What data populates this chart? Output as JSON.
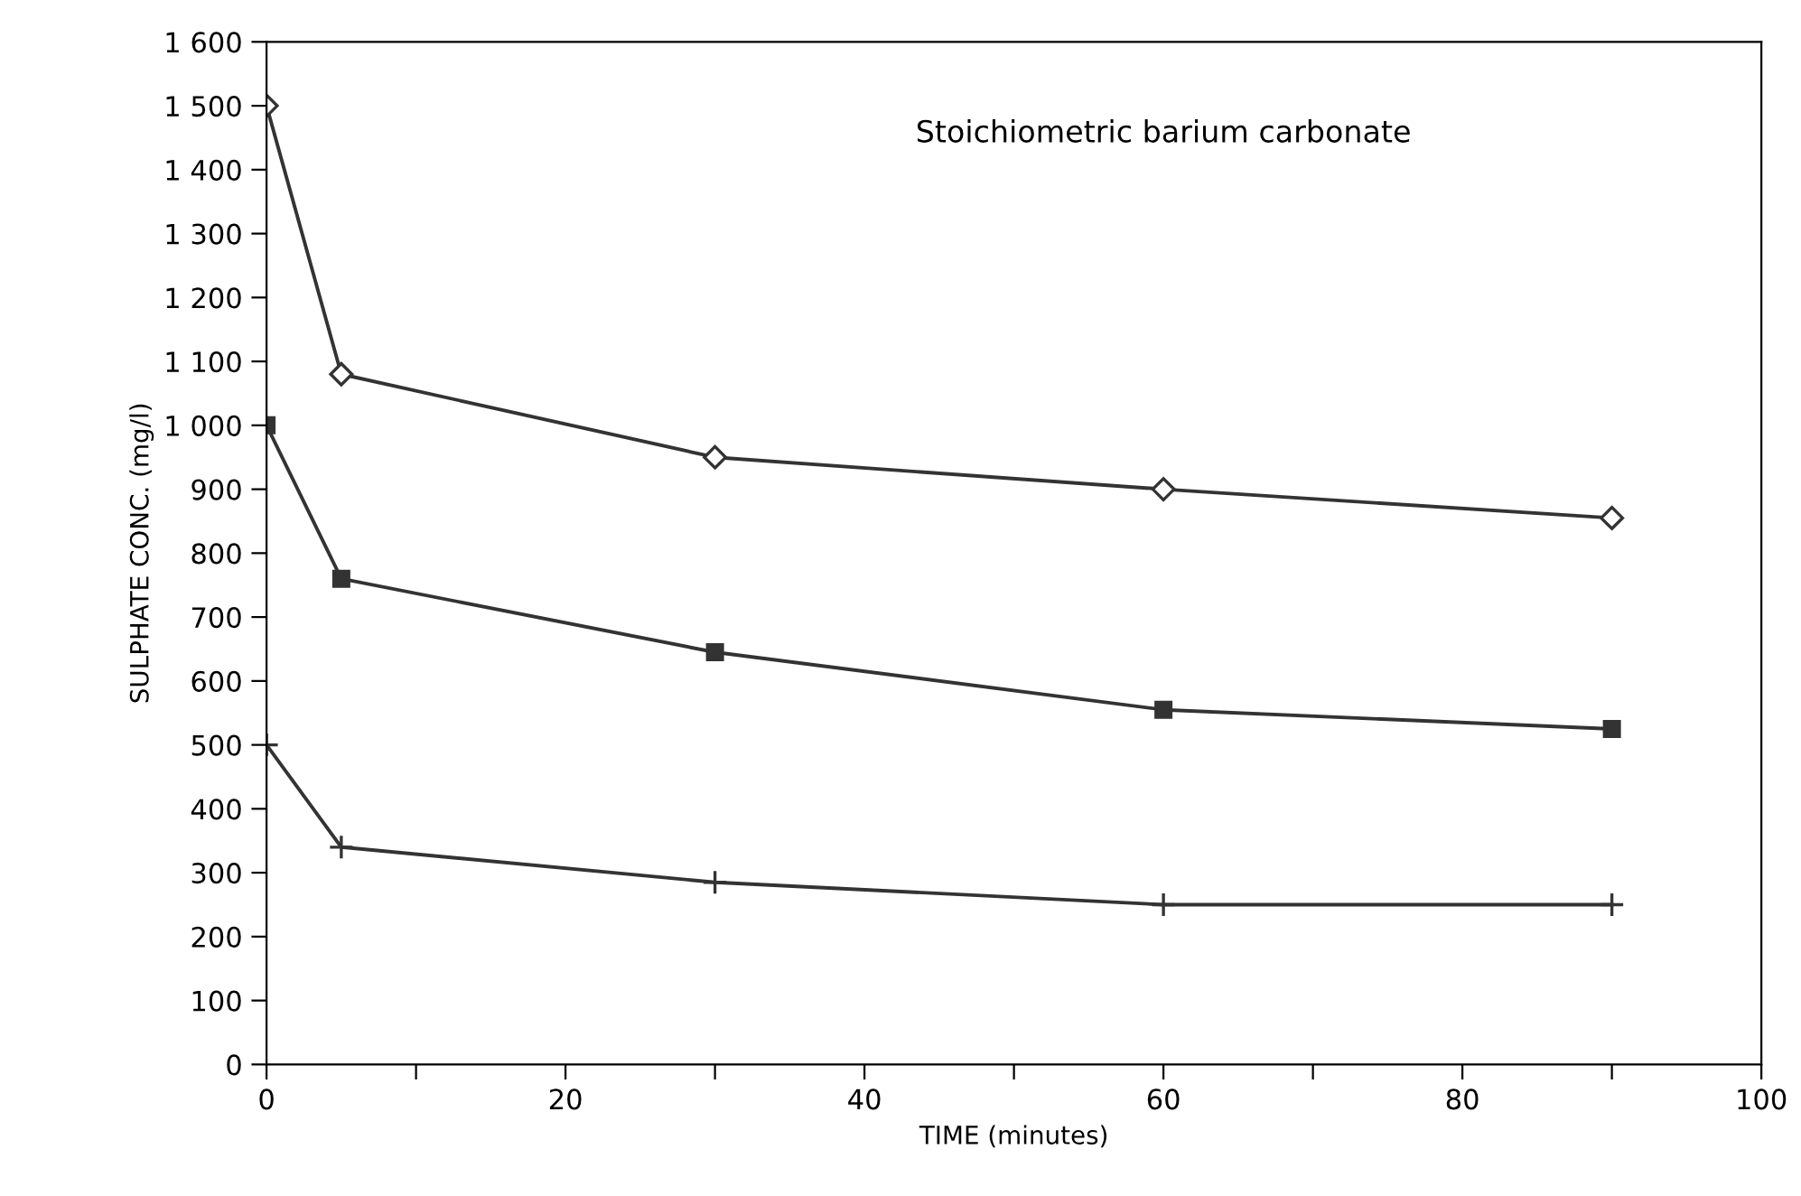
{
  "chart_data": {
    "type": "line",
    "xlabel": "TIME (minutes)",
    "ylabel": "SULPHATE CONC. (mg/l)",
    "annotations": [
      "Stoichiometric barium carbonate"
    ],
    "x": [
      0,
      5,
      30,
      60,
      90
    ],
    "series": [
      {
        "color": "#333333",
        "marker": "diamond",
        "values": [
          1500,
          1080,
          950,
          900,
          855
        ]
      },
      {
        "color": "#333333",
        "marker": "square",
        "values": [
          1000,
          760,
          645,
          555,
          525
        ]
      },
      {
        "color": "#333333",
        "marker": "cross",
        "values": [
          500,
          340,
          285,
          250,
          250
        ]
      }
    ],
    "xlim": [
      0,
      100
    ],
    "xticks": [
      0,
      {
        "value": 10,
        "label": null
      },
      20,
      {
        "value": 30,
        "label": null
      },
      40,
      {
        "value": 50,
        "label": null
      },
      60,
      {
        "value": 70,
        "label": null
      },
      80,
      {
        "value": 90,
        "label": null
      },
      100
    ],
    "ylim": [
      0,
      1600
    ],
    "yticks": [
      0,
      100,
      200,
      300,
      400,
      500,
      600,
      700,
      800,
      900,
      {
        "value": 1000,
        "label": "1 000"
      },
      {
        "value": 1100,
        "label": "1 100"
      },
      {
        "value": 1200,
        "label": "1 200"
      },
      {
        "value": 1300,
        "label": "1 300"
      },
      {
        "value": 1400,
        "label": "1 400"
      },
      {
        "value": 1500,
        "label": "1 500"
      },
      {
        "value": 1600,
        "label": "1 600"
      }
    ],
    "grid": false,
    "legend": false,
    "line_style": "solid"
  }
}
